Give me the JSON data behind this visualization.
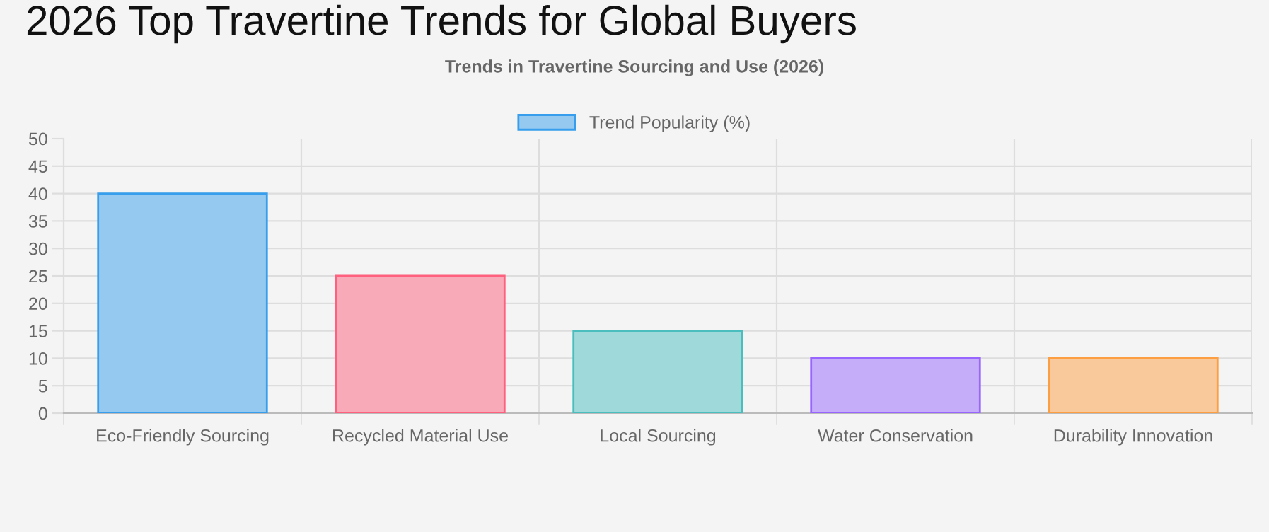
{
  "chart_data": {
    "type": "bar",
    "title": "2026 Top Travertine Trends for Global Buyers",
    "subtitle": "Trends in Travertine Sourcing and Use (2026)",
    "categories": [
      "Eco-Friendly Sourcing",
      "Recycled Material Use",
      "Local Sourcing",
      "Water Conservation",
      "Durability Innovation"
    ],
    "series": [
      {
        "name": "Trend Popularity (%)",
        "color": "#95c9f0",
        "colors": [
          "#95c9f0",
          "#f9aab9",
          "#9fd9d9",
          "#c6adf9",
          "#f9c99b"
        ],
        "values": [
          40,
          25,
          15,
          10,
          10
        ]
      }
    ],
    "ylim": [
      0,
      50
    ],
    "yticks": [
      0,
      5,
      10,
      15,
      20,
      25,
      30,
      35,
      40,
      45,
      50
    ],
    "grid": true,
    "legend": "top"
  }
}
